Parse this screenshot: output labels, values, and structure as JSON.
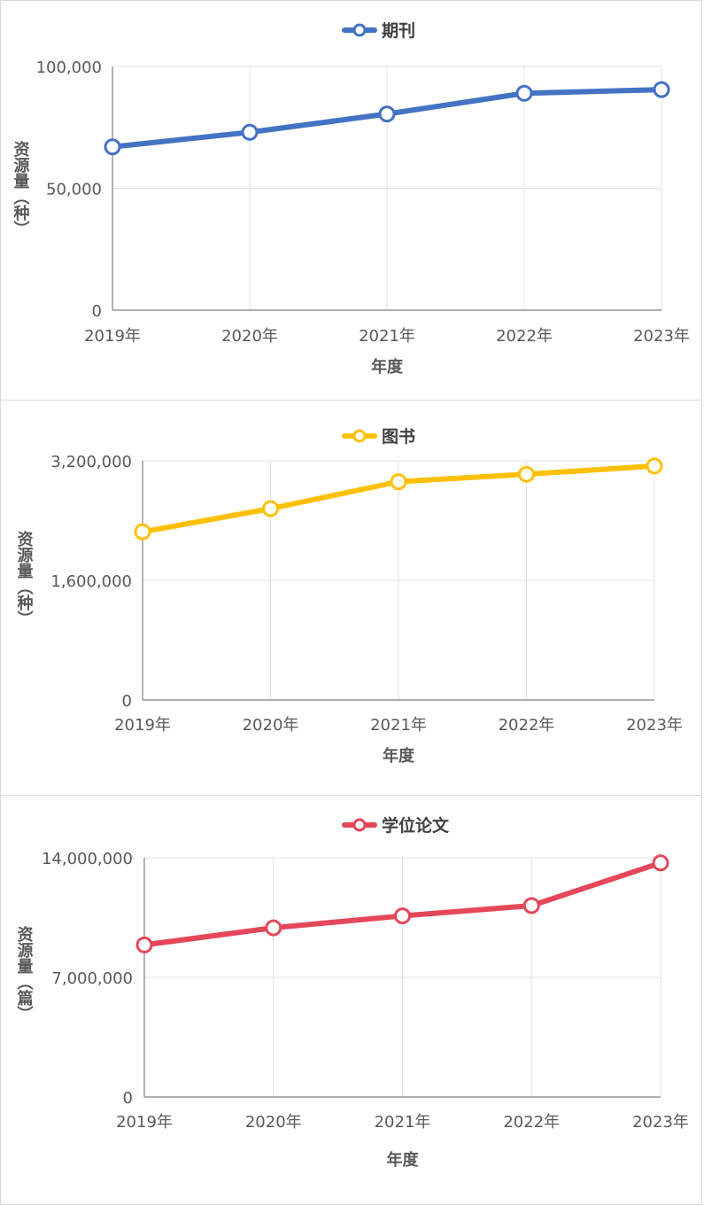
{
  "chart_data": [
    {
      "type": "line",
      "categories": [
        "2019年",
        "2020年",
        "2021年",
        "2022年",
        "2023年"
      ],
      "series": [
        {
          "name": "期刊",
          "values": [
            67000,
            73000,
            80500,
            89000,
            90500
          ],
          "color": "#4472c4"
        }
      ],
      "ylabel": "资源量（种）",
      "xlabel": "年度",
      "ylim": [
        0,
        100000
      ],
      "yticks": [
        "0",
        "50,000",
        "100,000"
      ],
      "grid": true,
      "legend": "top-center"
    },
    {
      "type": "line",
      "categories": [
        "2019年",
        "2020年",
        "2021年",
        "2022年",
        "2023年"
      ],
      "series": [
        {
          "name": "图书",
          "values": [
            2250000,
            2560000,
            2920000,
            3020000,
            3130000
          ],
          "color": "#ffc000"
        }
      ],
      "ylabel": "资源量（种）",
      "xlabel": "年度",
      "ylim": [
        0,
        3200000
      ],
      "yticks": [
        "0",
        "1,600,000",
        "3,200,000"
      ],
      "grid": true,
      "legend": "top-center"
    },
    {
      "type": "line",
      "categories": [
        "2019年",
        "2020年",
        "2021年",
        "2022年",
        "2023年"
      ],
      "series": [
        {
          "name": "学位论文",
          "values": [
            8900000,
            9900000,
            10600000,
            11200000,
            13700000
          ],
          "color": "#e5475a"
        }
      ],
      "ylabel": "资源量（篇）",
      "xlabel": "年度",
      "ylim": [
        0,
        14000000
      ],
      "yticks": [
        "0",
        "7,000,000",
        "14,000,000"
      ],
      "grid": true,
      "legend": "top-center"
    }
  ]
}
